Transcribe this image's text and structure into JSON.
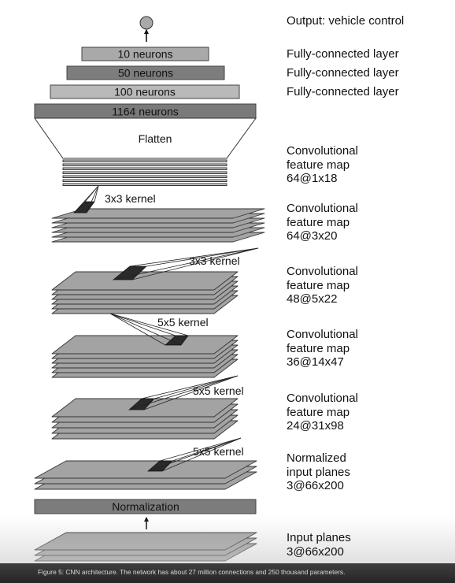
{
  "output_label": "Output: vehicle control",
  "fc_layers": [
    {
      "box": "10 neurons",
      "annotation": "Fully-connected layer",
      "color": "#a9a9a9"
    },
    {
      "box": "50 neurons",
      "annotation": "Fully-connected layer",
      "color": "#7d7d7d"
    },
    {
      "box": "100 neurons",
      "annotation": "Fully-connected layer",
      "color": "#b9b9b9"
    },
    {
      "box": "1164 neurons",
      "annotation": "",
      "color": "#7a7a7a"
    }
  ],
  "flatten_label": "Flatten",
  "stacks": [
    {
      "lines": [
        "Convolutional",
        "feature map",
        "64@1x18"
      ],
      "kernel": ""
    },
    {
      "lines": [
        "Convolutional",
        "feature map",
        "64@3x20"
      ],
      "kernel": "3x3 kernel"
    },
    {
      "lines": [
        "Convolutional",
        "feature map",
        "48@5x22"
      ],
      "kernel": "3x3 kernel"
    },
    {
      "lines": [
        "Convolutional",
        "feature map",
        "36@14x47"
      ],
      "kernel": "5x5 kernel"
    },
    {
      "lines": [
        "Convolutional",
        "feature map",
        "24@31x98"
      ],
      "kernel": "5x5 kernel"
    },
    {
      "lines": [
        "Normalized",
        "input planes",
        "3@66x200"
      ],
      "kernel": "5x5 kernel"
    },
    {
      "lines": [
        "Input planes",
        "3@66x200"
      ],
      "kernel": ""
    }
  ],
  "normalization_label": "Normalization",
  "caption": "Figure 5: CNN architecture. The network has about 27 million connections and 250 thousand parameters.",
  "colors": {
    "plane_fill": "#a3a3a3",
    "plane_stroke": "#333333",
    "fc_stroke": "#444444",
    "normalization_fill": "#7c7c7c",
    "output_node_fill": "#a9a9a9"
  }
}
